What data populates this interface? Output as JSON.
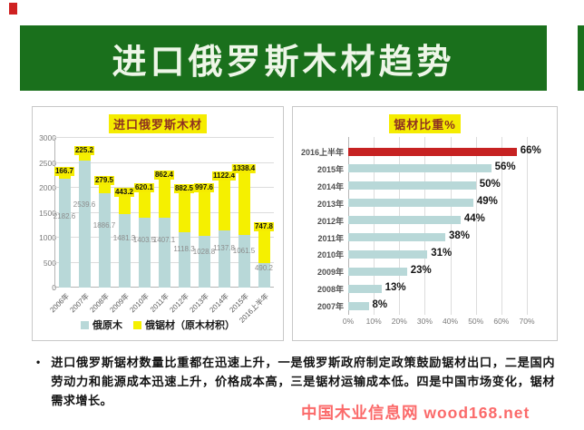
{
  "header": {
    "title": "进口俄罗斯木材趋势"
  },
  "bullet": {
    "marker": "•",
    "text": "进口俄罗斯锯材数量比重都在迅速上升，一是俄罗斯政府制定政策鼓励锯材出口，二是国内劳动力和能源成本迅速上升，价格成本高，三是锯材运输成本低。四是中国市场变化，锯材需求增长。"
  },
  "watermark": {
    "text": "中国木业信息网 wood168.net",
    "color": "#fb5a5a"
  },
  "colors": {
    "banner_green": "#1a701c",
    "highlight_yellow": "#f5ec00",
    "title_red": "#8e3120",
    "log_bar": "#b8d8d8",
    "sawn_bar": "#f5f000",
    "red_bar": "#c62222"
  },
  "chart_data": [
    {
      "type": "bar",
      "subtype": "stacked-vertical",
      "title": "进口俄罗斯木材",
      "categories": [
        "2006年",
        "2007年",
        "2008年",
        "2009年",
        "2010年",
        "2011年",
        "2012年",
        "2013年",
        "2014年",
        "2015年",
        "2016上半年"
      ],
      "series": [
        {
          "name": "俄原木",
          "color": "#b8d8d8",
          "values": [
            2182.6,
            2539.6,
            1886.7,
            1481.3,
            1403.5,
            1407.1,
            1118.3,
            1028.8,
            1137.8,
            1061.5,
            490.2
          ]
        },
        {
          "name": "俄锯材（原木材积）",
          "color": "#f5f000",
          "values": [
            166.7,
            225.2,
            279.5,
            443.2,
            620.1,
            862.4,
            882.5,
            997.6,
            1122.4,
            1338.4,
            747.8
          ]
        }
      ],
      "ylim": [
        0,
        3000
      ],
      "yticks": [
        0,
        500,
        1000,
        1500,
        2000,
        2500,
        3000
      ],
      "grid": true,
      "legend_position": "bottom"
    },
    {
      "type": "bar",
      "subtype": "horizontal",
      "title": "锯材比重%",
      "categories": [
        "2016上半年",
        "2015年",
        "2014年",
        "2013年",
        "2012年",
        "2011年",
        "2010年",
        "2009年",
        "2008年",
        "2007年"
      ],
      "values": [
        66,
        56,
        50,
        49,
        44,
        38,
        31,
        23,
        13,
        8
      ],
      "labels": [
        "66%",
        "56%",
        "50%",
        "49%",
        "44%",
        "38%",
        "31%",
        "23%",
        "13%",
        "8%"
      ],
      "bar_color": "#b8d8d8",
      "highlight_index": 0,
      "highlight_color": "#c62222",
      "xlim": [
        0,
        70
      ],
      "xticks": [
        0,
        10,
        20,
        30,
        40,
        50,
        60,
        70
      ],
      "xtick_labels": [
        "0%",
        "10%",
        "20%",
        "30%",
        "40%",
        "50%",
        "60%",
        "70%"
      ],
      "grid": true
    }
  ]
}
